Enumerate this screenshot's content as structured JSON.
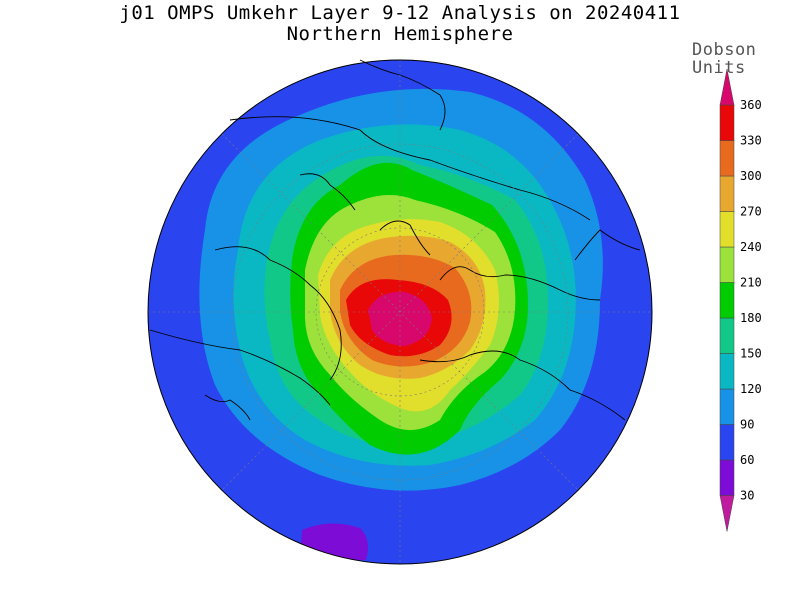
{
  "title": "j01 OMPS Umkehr Layer 9-12 Analysis on 20240411",
  "subtitle": "Northern Hemisphere",
  "colorbar": {
    "title_line1": "Dobson",
    "title_line2": "Units",
    "levels": [
      30,
      60,
      90,
      120,
      150,
      180,
      210,
      240,
      270,
      300,
      330,
      360
    ],
    "colors": [
      "#c01a9e",
      "#7c0cd6",
      "#2a45ef",
      "#1892e6",
      "#0ab8c4",
      "#12c888",
      "#00cc00",
      "#9ce23a",
      "#e2de2c",
      "#e8a830",
      "#e86a1e",
      "#e80808",
      "#d8076c"
    ]
  },
  "map_data": {
    "type": "polar-contour",
    "projection": "north-polar-stereographic",
    "units": "Dobson Units",
    "bands": [
      {
        "range": "90-120",
        "color": "#1892e6"
      },
      {
        "range": "120-150",
        "color": "#0ab8c4"
      },
      {
        "range": "150-180",
        "color": "#12c888"
      },
      {
        "range": "180-210",
        "color": "#00cc00"
      },
      {
        "range": "210-240",
        "color": "#9ce23a"
      },
      {
        "range": "240-270",
        "color": "#e2de2c"
      },
      {
        "range": "270-300",
        "color": "#e8a830"
      },
      {
        "range": "300-330",
        "color": "#e86a1e"
      },
      {
        "range": "330-360",
        "color": "#e80808"
      },
      {
        "range": ">360",
        "color": "#d8076c"
      }
    ],
    "background_range": "60-90",
    "low_patch_range": "30-60"
  }
}
